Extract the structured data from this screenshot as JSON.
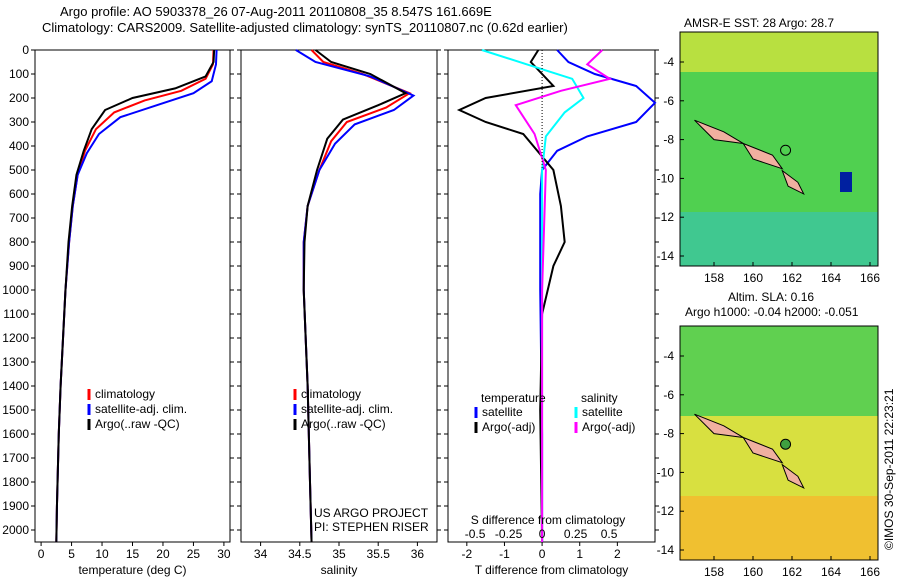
{
  "title": {
    "line1": "Argo profile: AO 5903378_26 07-Aug-2011 20110808_35 8.547S 161.669E",
    "line2": "Climatology: CARS2009. Satellite-adjusted climatology: synTS_20110807.nc (0.62d earlier)"
  },
  "credit": "©IMOS 30-Sep-2011 22:23:21",
  "project": {
    "line1": "US ARGO PROJECT",
    "line2": "PI: STEPHEN RISER"
  },
  "colors": {
    "climatology": "#ff0000",
    "satellite": "#0000ff",
    "argo": "#000000",
    "sal_sat": "#00ffff",
    "sal_argo": "#ff00ff"
  },
  "chart_data": [
    {
      "type": "line",
      "xlabel": "temperature (deg C)",
      "xticks": [
        0,
        5,
        10,
        15,
        20,
        25,
        30
      ],
      "xlim": [
        -1,
        31
      ],
      "ylim": [
        2050,
        0
      ],
      "yticks": [
        0,
        100,
        200,
        300,
        400,
        500,
        600,
        700,
        800,
        900,
        1000,
        1100,
        1200,
        1300,
        1400,
        1500,
        1600,
        1700,
        1800,
        1900,
        2000
      ],
      "legend": [
        "climatology",
        "satellite-adj. clim.",
        "Argo(..raw -QC)"
      ],
      "series": [
        {
          "name": "climatology",
          "color": "#ff0000",
          "x": [
            28.3,
            28.2,
            27,
            23,
            17,
            12,
            9,
            7.2,
            6,
            5.2,
            4.6,
            4,
            3.6,
            3.2,
            2.9,
            2.6,
            2.5
          ],
          "y": [
            0,
            60,
            120,
            170,
            210,
            260,
            330,
            420,
            520,
            650,
            800,
            1000,
            1200,
            1400,
            1600,
            1900,
            2050
          ]
        },
        {
          "name": "satellite-adj. clim.",
          "color": "#0000ff",
          "x": [
            28.8,
            28.7,
            28,
            25,
            19,
            13,
            9.5,
            7.5,
            6,
            5.2,
            4.6,
            4,
            3.6,
            3.2,
            2.9,
            2.6,
            2.5
          ],
          "y": [
            0,
            60,
            130,
            180,
            230,
            280,
            350,
            430,
            520,
            650,
            800,
            1000,
            1200,
            1400,
            1600,
            1900,
            2050
          ]
        },
        {
          "name": "Argo(..raw -QC)",
          "color": "#000000",
          "x": [
            28.4,
            28.3,
            27,
            22,
            15,
            10.5,
            8.3,
            7,
            5.8,
            5.1,
            4.5,
            4,
            3.6,
            3.2,
            2.9,
            2.6,
            2.5
          ],
          "y": [
            0,
            50,
            110,
            160,
            200,
            250,
            330,
            420,
            520,
            650,
            800,
            1000,
            1200,
            1400,
            1600,
            1900,
            2050
          ]
        }
      ]
    },
    {
      "type": "line",
      "xlabel": "salinity",
      "xticks": [
        34,
        34.5,
        35,
        35.5,
        36
      ],
      "xlim": [
        33.75,
        36.25
      ],
      "ylim": [
        2050,
        0
      ],
      "legend": [
        "climatology",
        "satellite-adj. clim.",
        "Argo(..raw -QC)"
      ],
      "series": [
        {
          "name": "climatology",
          "color": "#ff0000",
          "x": [
            34.65,
            34.8,
            35.3,
            35.9,
            35.6,
            35.1,
            34.9,
            34.75,
            34.6,
            34.55,
            34.55,
            34.6,
            34.63,
            34.65
          ],
          "y": [
            0,
            50,
            100,
            180,
            240,
            300,
            380,
            500,
            650,
            800,
            1000,
            1400,
            1800,
            2050
          ]
        },
        {
          "name": "satellite-adj. clim.",
          "color": "#0000ff",
          "x": [
            34.45,
            34.7,
            35.4,
            35.95,
            35.7,
            35.2,
            34.95,
            34.75,
            34.6,
            34.55,
            34.55,
            34.6,
            34.63,
            34.65
          ],
          "y": [
            0,
            50,
            110,
            190,
            250,
            310,
            390,
            500,
            650,
            800,
            1000,
            1400,
            1800,
            2050
          ]
        },
        {
          "name": "Argo(..raw -QC)",
          "color": "#000000",
          "x": [
            34.7,
            34.9,
            35.4,
            35.85,
            35.5,
            35.05,
            34.85,
            34.72,
            34.6,
            34.56,
            34.55,
            34.6,
            34.63,
            34.65
          ],
          "y": [
            0,
            50,
            100,
            180,
            230,
            290,
            370,
            500,
            650,
            800,
            1000,
            1400,
            1800,
            2050
          ]
        }
      ]
    },
    {
      "type": "line",
      "xlabel": "T difference from climatology",
      "xlabel2": "S difference from climatology",
      "xticks": [
        -2,
        -1,
        0,
        1,
        2
      ],
      "xticks2": [
        "-0.5",
        "-0.25",
        "0",
        "0.25",
        "0.5"
      ],
      "xlim": [
        -2.5,
        3
      ],
      "ylim": [
        2050,
        0
      ],
      "legend_titles": [
        "temperature",
        "salinity"
      ],
      "legend": [
        "satellite",
        "Argo(-adj)",
        "satellite",
        "Argo(-adj)"
      ],
      "series": [
        {
          "name": "T satellite",
          "color": "#0000ff",
          "x": [
            0.4,
            0.7,
            1.4,
            2.5,
            3.0,
            2.5,
            1.2,
            0.4,
            0,
            -0.05,
            -0.05,
            0,
            0
          ],
          "y": [
            0,
            50,
            100,
            150,
            220,
            300,
            360,
            420,
            500,
            600,
            1000,
            1600,
            2050
          ]
        },
        {
          "name": "T Argo(-adj)",
          "color": "#000000",
          "x": [
            -0.1,
            -0.3,
            0.3,
            -1.5,
            -2.2,
            -1.5,
            -0.5,
            0.3,
            0.5,
            0.6,
            0.3,
            0,
            -0.05,
            0
          ],
          "y": [
            0,
            50,
            150,
            200,
            250,
            300,
            350,
            500,
            650,
            800,
            900,
            1100,
            1500,
            2050
          ]
        },
        {
          "name": "S satellite",
          "color": "#00ffff",
          "x": [
            -1.6,
            -0.4,
            0.8,
            1.1,
            0.6,
            0.1,
            0,
            0,
            0
          ],
          "y": [
            0,
            60,
            120,
            200,
            260,
            360,
            500,
            1000,
            2050
          ]
        },
        {
          "name": "S Argo(-adj)",
          "color": "#ff00ff",
          "x": [
            1.6,
            1.2,
            1.8,
            0.5,
            -0.7,
            -0.2,
            0.1,
            0,
            0
          ],
          "y": [
            0,
            60,
            120,
            170,
            230,
            350,
            500,
            1000,
            2050
          ]
        }
      ]
    }
  ],
  "maps": [
    {
      "title": "AMSR-E SST: 28 Argo: 28.7",
      "xticks": [
        "158",
        "160",
        "162",
        "164",
        "166"
      ],
      "yticks": [
        "-4",
        "-6",
        "-8",
        "-10",
        "-12",
        "-14"
      ]
    },
    {
      "title1": "Altim. SLA: 0.16",
      "title2": "Argo h1000: -0.04 h2000: -0.051",
      "xticks": [
        "158",
        "160",
        "162",
        "164",
        "166"
      ],
      "yticks": [
        "-4",
        "-6",
        "-8",
        "-10",
        "-12",
        "-14"
      ]
    }
  ]
}
